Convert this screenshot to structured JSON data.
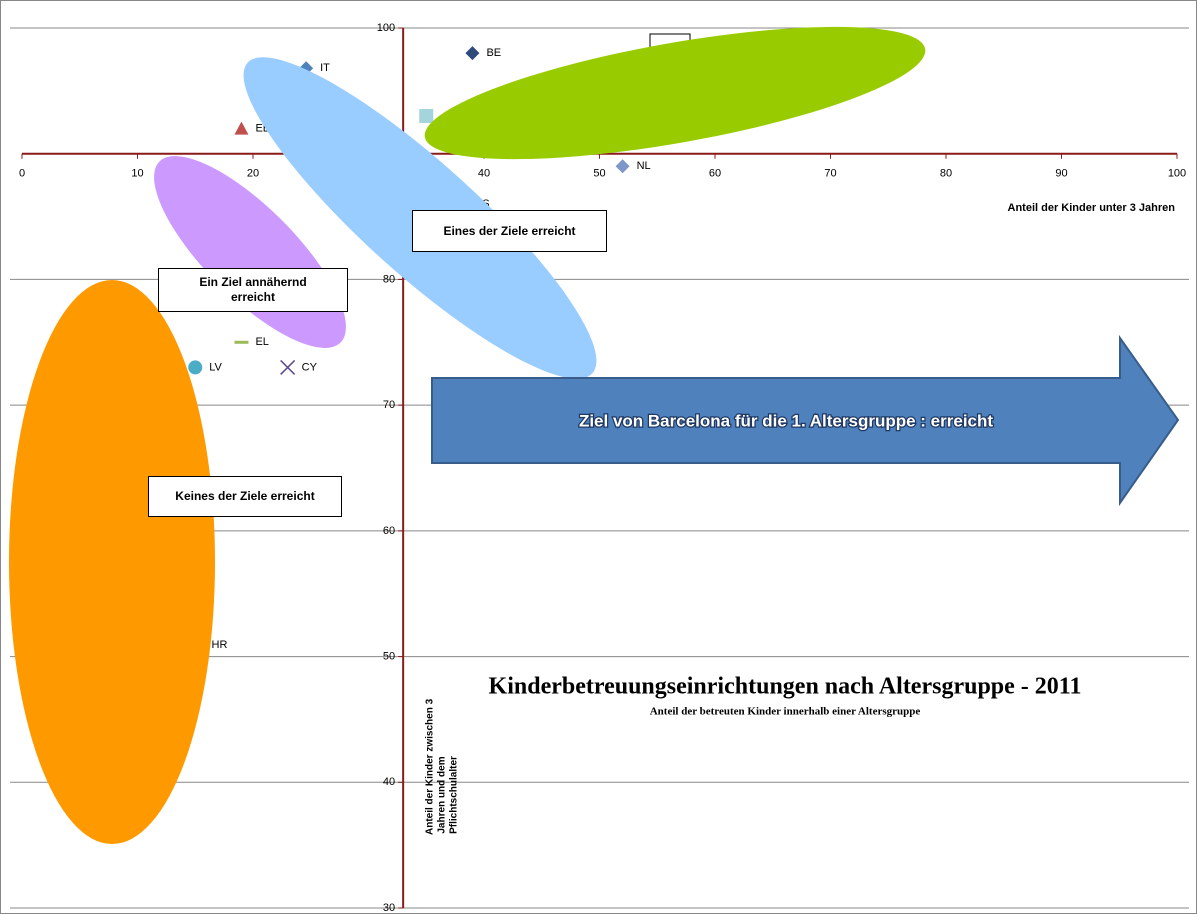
{
  "chart_data": {
    "type": "scatter",
    "title": "Kinderbetreuungseinrichtungen nach Altersgruppe - 2011",
    "subtitle": "Anteil der betreuten Kinder innerhalb einer Altersgruppe",
    "x_label": "Anteil der Kinder unter 3 Jahren",
    "y_label": [
      "Anteil der Kinder zwischen 3",
      "Jahren und dem",
      "Pflichtschulalter"
    ],
    "xlim": [
      0,
      100
    ],
    "xticks": [
      0,
      10,
      20,
      30,
      40,
      50,
      60,
      70,
      80,
      90,
      100
    ],
    "ylim": [
      30,
      100
    ],
    "yticks": [
      30,
      40,
      50,
      60,
      70,
      80,
      100
    ],
    "x_axis_at": 90,
    "y_axis_at": 33,
    "grid": true,
    "points": [
      {
        "label": "BE",
        "x": 39,
        "y": 98,
        "marker": "diamond",
        "color": "#2e4a7a"
      },
      {
        "label": "NL",
        "x": 52,
        "y": 89,
        "marker": "diamond",
        "color": "#7f96c8"
      },
      {
        "label": "EE",
        "x": 19,
        "y": 92,
        "marker": "triangle",
        "color": "#c0504d"
      },
      {
        "label": "IT",
        "x": 24.6,
        "y": 96.8,
        "marker": "diamond",
        "color": "#4f81bd"
      },
      {
        "label": null,
        "x": 35,
        "y": 93,
        "marker": "square",
        "color": "#a5d5dc"
      },
      {
        "label": "ES",
        "x": 38,
        "y": 86,
        "marker": "diamond",
        "color": "#4f81bd"
      },
      {
        "label": "EL",
        "x": 19,
        "y": 75,
        "marker": "dash",
        "color": "#9bbb59"
      },
      {
        "label": "LV",
        "x": 15,
        "y": 73,
        "marker": "circle",
        "color": "#4bacc6"
      },
      {
        "label": "CY",
        "x": 23,
        "y": 73,
        "marker": "x",
        "color": "#5e4b8a"
      },
      {
        "label": "HR",
        "x": 15.2,
        "y": 50.9,
        "marker": "diamond",
        "color": "#4f81bd"
      }
    ],
    "annotations": [
      "Eines der Ziele erreicht",
      "Ein Ziel annähernd erreicht",
      "Keines der Ziele erreicht",
      "Ziel von Barcelona für die 1. Altersgruppe : erreicht"
    ]
  }
}
